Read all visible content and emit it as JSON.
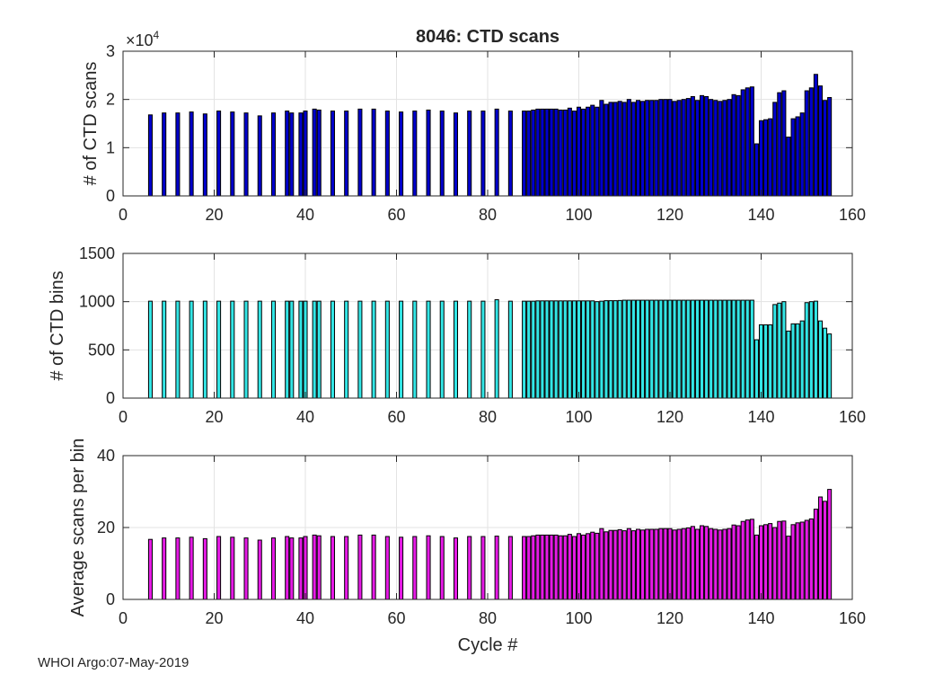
{
  "figure": {
    "title": "8046: CTD scans",
    "footer": "WHOI Argo:07-May-2019",
    "xlabel": "Cycle #"
  },
  "chart_data": [
    {
      "type": "bar",
      "name": "ctd-scans",
      "title": "8046: CTD scans",
      "xlabel": "",
      "ylabel": "# of CTD scans",
      "y_multiplier_label": "×10",
      "y_multiplier_exponent": "4",
      "color": "#0000cc",
      "xlim": [
        0,
        160
      ],
      "ylim": [
        0,
        3
      ],
      "xticks": [
        "0",
        "20",
        "40",
        "60",
        "80",
        "100",
        "120",
        "140",
        "160"
      ],
      "yticks": [
        "0",
        "1",
        "2",
        "3"
      ],
      "grid": true,
      "x": [
        6,
        9,
        12,
        15,
        18,
        21,
        24,
        27,
        30,
        33,
        36,
        37,
        39,
        40,
        42,
        43,
        46,
        49,
        52,
        55,
        58,
        61,
        64,
        67,
        70,
        73,
        76,
        79,
        82,
        85,
        88,
        89,
        90,
        91,
        92,
        93,
        94,
        95,
        96,
        97,
        98,
        99,
        100,
        101,
        102,
        103,
        104,
        105,
        106,
        107,
        108,
        109,
        110,
        111,
        112,
        113,
        114,
        115,
        116,
        117,
        118,
        119,
        120,
        121,
        122,
        123,
        124,
        125,
        126,
        127,
        128,
        129,
        130,
        131,
        132,
        133,
        134,
        135,
        136,
        137,
        138,
        139,
        140,
        141,
        142,
        143,
        144,
        145,
        146,
        147,
        148,
        149,
        150,
        151,
        152,
        153,
        154,
        155
      ],
      "values": [
        1.68,
        1.72,
        1.72,
        1.74,
        1.7,
        1.76,
        1.74,
        1.72,
        1.66,
        1.72,
        1.76,
        1.72,
        1.72,
        1.76,
        1.8,
        1.78,
        1.76,
        1.76,
        1.8,
        1.8,
        1.76,
        1.74,
        1.76,
        1.78,
        1.76,
        1.72,
        1.76,
        1.76,
        1.8,
        1.76,
        1.76,
        1.76,
        1.78,
        1.8,
        1.8,
        1.8,
        1.8,
        1.8,
        1.78,
        1.78,
        1.82,
        1.76,
        1.84,
        1.8,
        1.84,
        1.88,
        1.84,
        1.98,
        1.9,
        1.94,
        1.94,
        1.96,
        1.94,
        2.0,
        1.94,
        1.98,
        1.96,
        1.98,
        1.98,
        1.98,
        2.0,
        2.0,
        2.0,
        1.96,
        1.98,
        2.0,
        2.02,
        2.06,
        1.98,
        2.08,
        2.06,
        2.0,
        1.98,
        1.96,
        1.98,
        2.0,
        2.1,
        2.08,
        2.2,
        2.24,
        2.26,
        1.08,
        1.56,
        1.58,
        1.6,
        1.94,
        2.14,
        2.18,
        1.22,
        1.6,
        1.64,
        1.72,
        2.18,
        2.24,
        2.52,
        2.28,
        1.98,
        2.04
      ]
    },
    {
      "type": "bar",
      "name": "ctd-bins",
      "title": "",
      "xlabel": "",
      "ylabel": "# of CTD bins",
      "color": "#33e6e6",
      "xlim": [
        0,
        160
      ],
      "ylim": [
        0,
        1500
      ],
      "xticks": [
        "0",
        "20",
        "40",
        "60",
        "80",
        "100",
        "120",
        "140",
        "160"
      ],
      "yticks": [
        "0",
        "500",
        "1000",
        "1500"
      ],
      "grid": true,
      "x": [
        6,
        9,
        12,
        15,
        18,
        21,
        24,
        27,
        30,
        33,
        36,
        37,
        39,
        40,
        42,
        43,
        46,
        49,
        52,
        55,
        58,
        61,
        64,
        67,
        70,
        73,
        76,
        79,
        82,
        85,
        88,
        89,
        90,
        91,
        92,
        93,
        94,
        95,
        96,
        97,
        98,
        99,
        100,
        101,
        102,
        103,
        104,
        105,
        106,
        107,
        108,
        109,
        110,
        111,
        112,
        113,
        114,
        115,
        116,
        117,
        118,
        119,
        120,
        121,
        122,
        123,
        124,
        125,
        126,
        127,
        128,
        129,
        130,
        131,
        132,
        133,
        134,
        135,
        136,
        137,
        138,
        139,
        140,
        141,
        142,
        143,
        144,
        145,
        146,
        147,
        148,
        149,
        150,
        151,
        152,
        153,
        154,
        155
      ],
      "values": [
        1005,
        1005,
        1005,
        1005,
        1005,
        1005,
        1005,
        1005,
        1005,
        1005,
        1005,
        1005,
        1005,
        1005,
        1005,
        1005,
        1005,
        1005,
        1005,
        1005,
        1005,
        1005,
        1005,
        1005,
        1005,
        1005,
        1005,
        1005,
        1020,
        1005,
        1005,
        1005,
        1005,
        1008,
        1008,
        1008,
        1008,
        1008,
        1008,
        1008,
        1008,
        1008,
        1008,
        1008,
        1008,
        1008,
        1000,
        1005,
        1010,
        1010,
        1010,
        1012,
        1015,
        1015,
        1015,
        1015,
        1015,
        1015,
        1015,
        1015,
        1015,
        1015,
        1015,
        1015,
        1015,
        1015,
        1015,
        1015,
        1015,
        1015,
        1015,
        1015,
        1015,
        1015,
        1015,
        1015,
        1015,
        1015,
        1015,
        1015,
        1015,
        605,
        760,
        760,
        760,
        970,
        985,
        1000,
        695,
        770,
        770,
        800,
        990,
        1000,
        1005,
        800,
        725,
        665
      ]
    },
    {
      "type": "bar",
      "name": "avg-scans-per-bin",
      "title": "",
      "xlabel": "Cycle #",
      "ylabel": "Average scans per bin",
      "color": "#e61ae6",
      "xlim": [
        0,
        160
      ],
      "ylim": [
        0,
        40
      ],
      "xticks": [
        "0",
        "20",
        "40",
        "60",
        "80",
        "100",
        "120",
        "140",
        "160"
      ],
      "yticks": [
        "0",
        "20",
        "40"
      ],
      "grid": true,
      "x": [
        6,
        9,
        12,
        15,
        18,
        21,
        24,
        27,
        30,
        33,
        36,
        37,
        39,
        40,
        42,
        43,
        46,
        49,
        52,
        55,
        58,
        61,
        64,
        67,
        70,
        73,
        76,
        79,
        82,
        85,
        88,
        89,
        90,
        91,
        92,
        93,
        94,
        95,
        96,
        97,
        98,
        99,
        100,
        101,
        102,
        103,
        104,
        105,
        106,
        107,
        108,
        109,
        110,
        111,
        112,
        113,
        114,
        115,
        116,
        117,
        118,
        119,
        120,
        121,
        122,
        123,
        124,
        125,
        126,
        127,
        128,
        129,
        130,
        131,
        132,
        133,
        134,
        135,
        136,
        137,
        138,
        139,
        140,
        141,
        142,
        143,
        144,
        145,
        146,
        147,
        148,
        149,
        150,
        151,
        152,
        153,
        154,
        155
      ],
      "values": [
        16.7,
        17.1,
        17.1,
        17.3,
        16.9,
        17.5,
        17.3,
        17.1,
        16.5,
        17.1,
        17.5,
        17.1,
        17.1,
        17.5,
        17.9,
        17.7,
        17.5,
        17.5,
        17.9,
        17.9,
        17.5,
        17.3,
        17.5,
        17.7,
        17.5,
        17.1,
        17.5,
        17.5,
        17.6,
        17.5,
        17.5,
        17.5,
        17.7,
        17.9,
        17.9,
        17.9,
        17.9,
        17.9,
        17.7,
        17.7,
        18.1,
        17.5,
        18.3,
        17.9,
        18.3,
        18.7,
        18.4,
        19.7,
        18.8,
        19.2,
        19.2,
        19.4,
        19.1,
        19.7,
        19.1,
        19.5,
        19.3,
        19.5,
        19.5,
        19.5,
        19.7,
        19.7,
        19.7,
        19.3,
        19.5,
        19.7,
        19.9,
        20.3,
        19.5,
        20.5,
        20.3,
        19.7,
        19.5,
        19.3,
        19.5,
        19.7,
        20.7,
        20.5,
        21.7,
        22.1,
        22.3,
        17.9,
        20.5,
        20.8,
        21.1,
        20.0,
        21.7,
        21.8,
        17.6,
        20.8,
        21.3,
        21.5,
        22.0,
        22.4,
        25.1,
        28.5,
        27.3,
        30.6
      ]
    }
  ]
}
